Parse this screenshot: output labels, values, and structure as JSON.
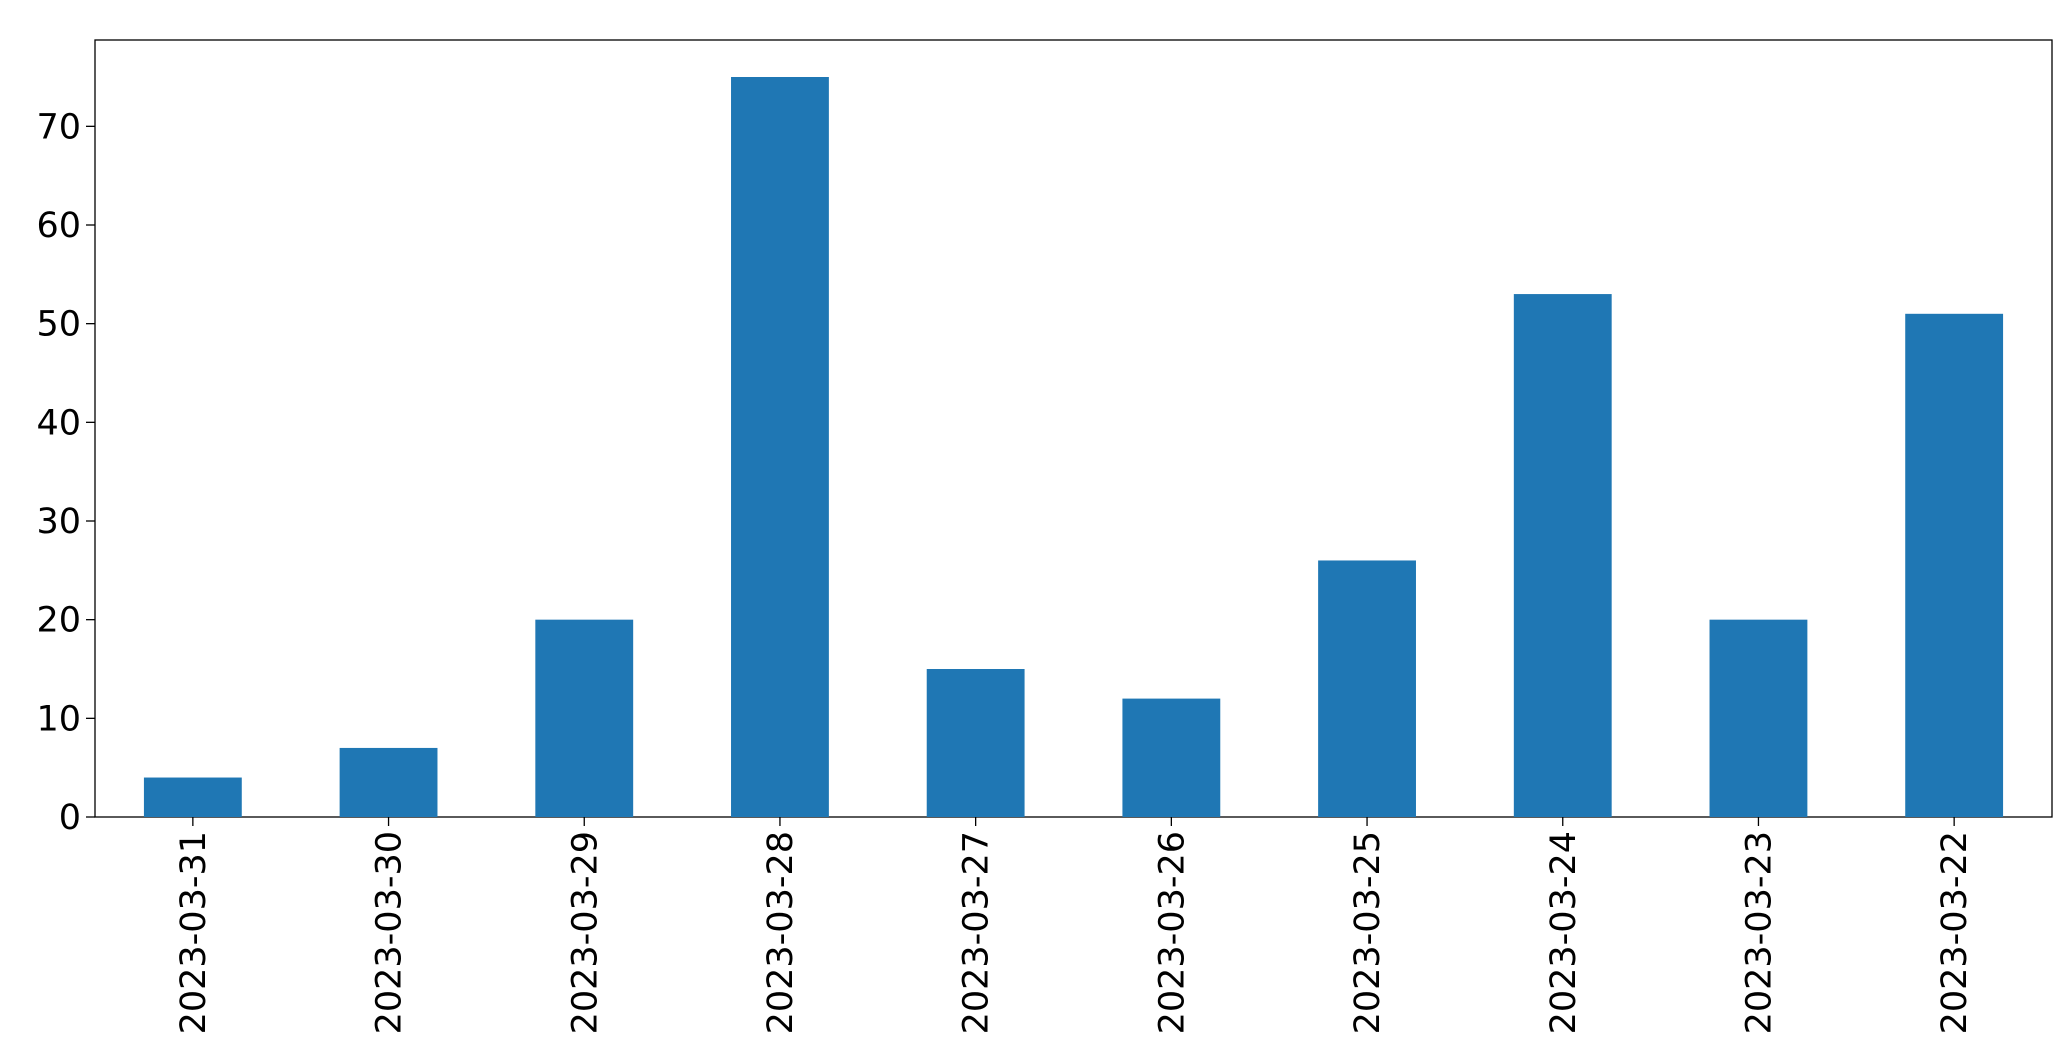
{
  "chart_data": {
    "type": "bar",
    "categories": [
      "2023-03-31",
      "2023-03-30",
      "2023-03-29",
      "2023-03-28",
      "2023-03-27",
      "2023-03-26",
      "2023-03-25",
      "2023-03-24",
      "2023-03-23",
      "2023-03-22"
    ],
    "values": [
      4,
      7,
      20,
      75,
      15,
      12,
      26,
      53,
      20,
      51
    ],
    "color": "#1f77b4",
    "ylim": [
      0,
      78.75
    ],
    "yticks": [
      0,
      10,
      20,
      30,
      40,
      50,
      60,
      70
    ],
    "grid": false
  }
}
